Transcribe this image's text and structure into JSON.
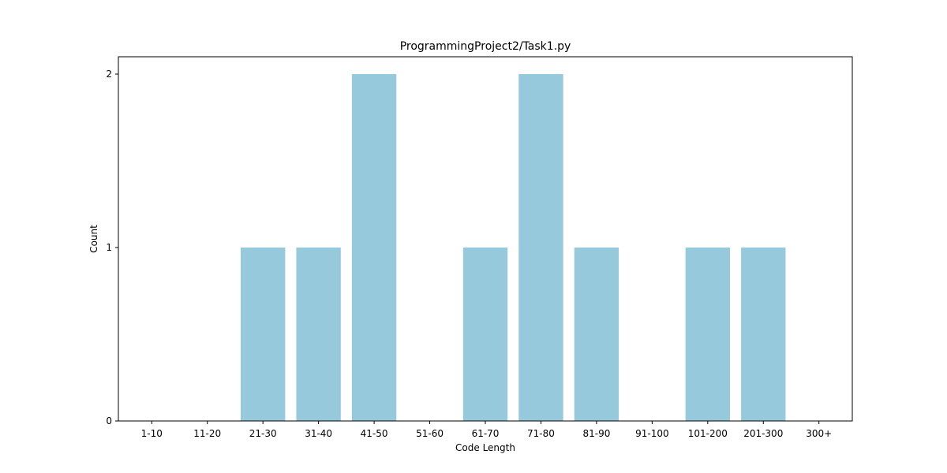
{
  "chart_data": {
    "type": "bar",
    "title": "ProgrammingProject2/Task1.py",
    "xlabel": "Code Length",
    "ylabel": "Count",
    "categories": [
      "1-10",
      "11-20",
      "21-30",
      "31-40",
      "41-50",
      "51-60",
      "61-70",
      "71-80",
      "81-90",
      "91-100",
      "101-200",
      "201-300",
      "300+"
    ],
    "values": [
      0,
      0,
      1,
      1,
      2,
      0,
      1,
      2,
      1,
      0,
      1,
      1,
      0
    ],
    "ylim": [
      0,
      2.1
    ],
    "yticks": [
      0,
      1,
      2
    ],
    "grid": false,
    "legend": "none",
    "bar_color": "#96c9dc"
  }
}
